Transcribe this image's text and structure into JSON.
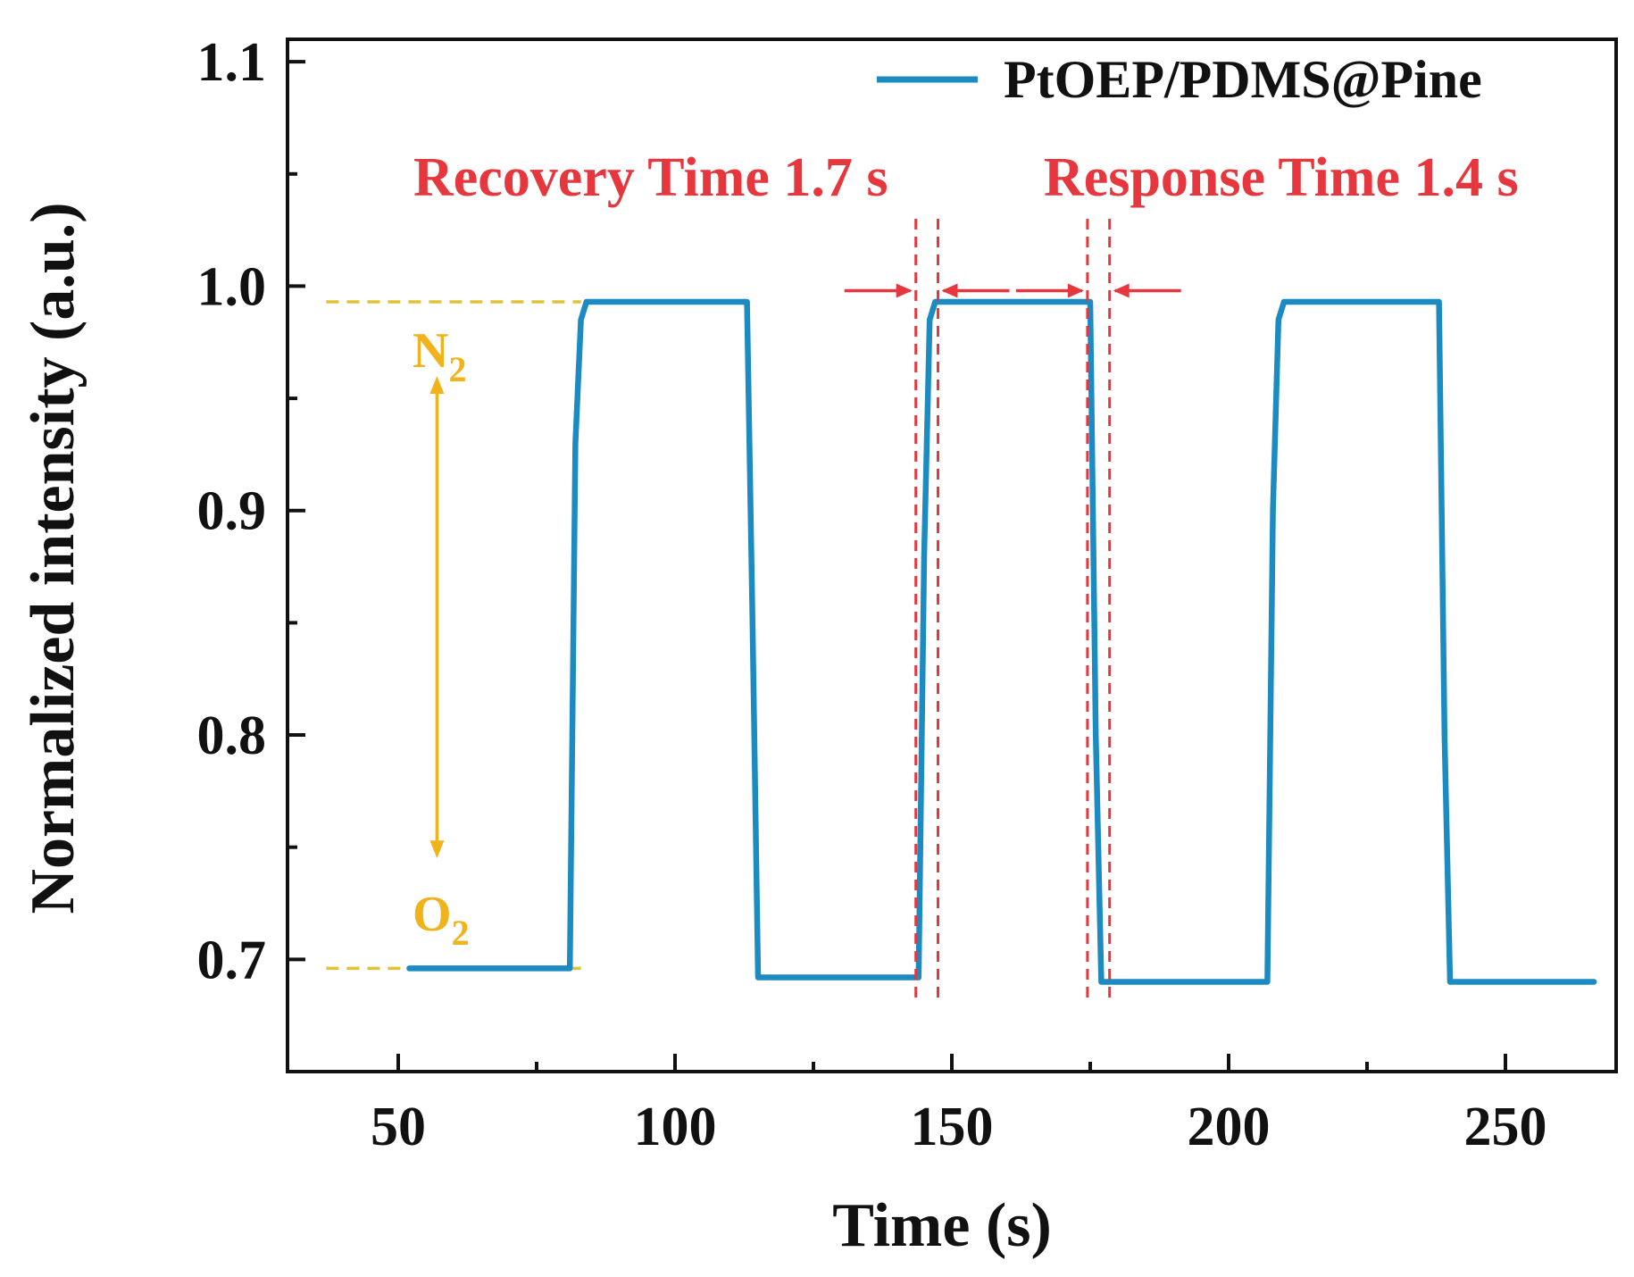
{
  "colors": {
    "series": "#1b8bc1",
    "annotation_red": "#e5373d",
    "gas_gold": "#f1b31c",
    "guide_yellow": "#e0c13a",
    "axis": "#111111"
  },
  "chart_data": {
    "type": "line",
    "xlabel": "Time (s)",
    "ylabel": "Normalized intensity (a.u.)",
    "xlim": [
      30,
      270
    ],
    "ylim": [
      0.65,
      1.11
    ],
    "x_ticks": [
      50,
      100,
      150,
      200,
      250
    ],
    "x_tick_labels": [
      "50",
      "100",
      "150",
      "200",
      "250"
    ],
    "x_minor_ticks": [
      75,
      125,
      175,
      225
    ],
    "y_ticks": [
      0.7,
      0.8,
      0.9,
      1.0,
      1.1
    ],
    "y_tick_labels": [
      "0.7",
      "0.8",
      "0.9",
      "1.0",
      "1.1"
    ],
    "y_minor_ticks": [
      0.75,
      0.85,
      0.95,
      1.05
    ],
    "legend_position": "top-right",
    "series": [
      {
        "name": "PtOEP/PDMS@Pine",
        "color": "#1b8bc1",
        "x": [
          52,
          81,
          82,
          83,
          84,
          113,
          114,
          115,
          144,
          145,
          146,
          147,
          175,
          176,
          177,
          207,
          208,
          209,
          210,
          238,
          239,
          240,
          266
        ],
        "y": [
          0.696,
          0.696,
          0.93,
          0.985,
          0.993,
          0.993,
          0.85,
          0.692,
          0.692,
          0.88,
          0.985,
          0.993,
          0.993,
          0.8,
          0.69,
          0.69,
          0.9,
          0.985,
          0.993,
          0.993,
          0.8,
          0.69,
          0.69
        ]
      }
    ],
    "annotations": {
      "recovery_label": "Recovery Time 1.7 s",
      "response_label": "Response Time 1.4 s",
      "recovery_interval": [
        143.5,
        147.5
      ],
      "response_interval": [
        174.5,
        178.5
      ],
      "arrow_level": 0.998,
      "guide_levels": [
        0.993,
        0.696
      ],
      "guide_x_range": [
        37,
        83
      ],
      "gas_arrow_x": 57,
      "gas_arrow_y": [
        0.96,
        0.745
      ],
      "gas_top_label": "N",
      "gas_top_sub": "2",
      "gas_bottom_label": "O",
      "gas_bottom_sub": "2"
    }
  }
}
